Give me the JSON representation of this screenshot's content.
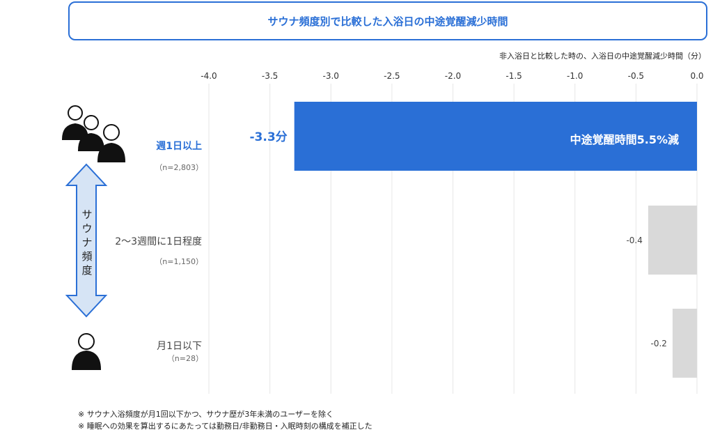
{
  "title": "サウナ頻度別で比較した入浴日の中途覚醒減少時間",
  "unit_note": "非入浴日と比較した時の、入浴日の中途覚醒減少時間（分）",
  "frequency_axis_label": "サウナ頻度",
  "categories": [
    {
      "label": "週1日以上",
      "n": "（n=2,803）"
    },
    {
      "label": "2〜3週間に1日程度",
      "n": "（n=1,150）"
    },
    {
      "label": "月1日以下",
      "n": "（n=28）"
    }
  ],
  "bar_labels": {
    "main_value": "-3.3分",
    "main_inside": "中途覚醒時間5.5%減",
    "second_value": "-0.4",
    "third_value": "-0.2"
  },
  "footnotes": [
    "※ サウナ入浴頻度が月1回以下かつ、サウナ歴が3年未満のユーザーを除く",
    "※ 睡眠への効果を算出するにあたっては勤務日/非勤務日・入眠時刻の構成を補正した"
  ],
  "colors": {
    "accent": "#2a6fd6",
    "bar_main": "#2a6fd6",
    "bar_other": "#d9d9d9",
    "grid": "#e6e6e6",
    "arrow_fill": "#d6e4f5",
    "arrow_stroke": "#2a6fd6"
  },
  "chart_data": {
    "type": "bar",
    "orientation": "horizontal",
    "categories": [
      "週1日以上",
      "2〜3週間に1日程度",
      "月1日以下"
    ],
    "values": [
      -3.3,
      -0.4,
      -0.2
    ],
    "xlim": [
      -4.0,
      0.0
    ],
    "x_ticks": [
      "-4.0",
      "-3.5",
      "-3.0",
      "-2.5",
      "-2.0",
      "-1.5",
      "-1.0",
      "-0.5",
      "0.0"
    ],
    "grid": true
  }
}
